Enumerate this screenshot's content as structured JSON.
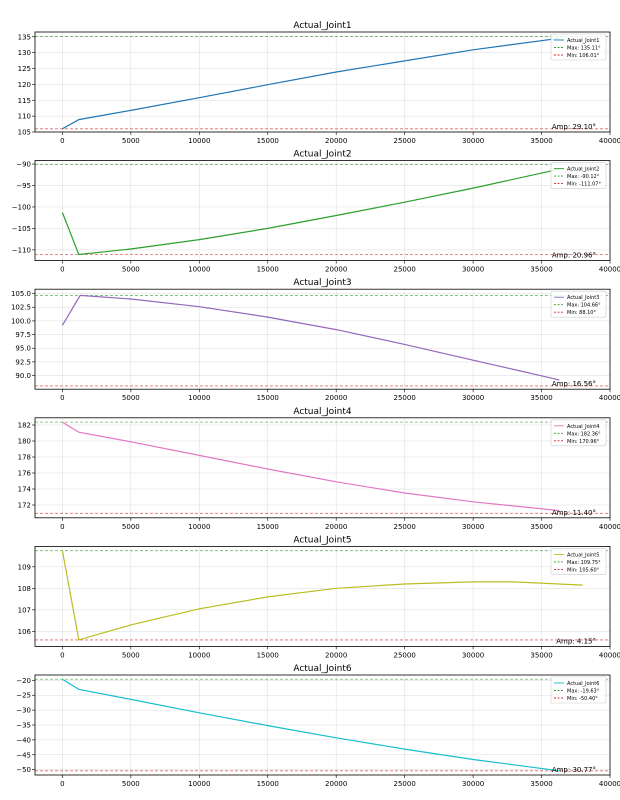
{
  "figure": {
    "background": "#ffffff"
  },
  "chart_data": [
    {
      "type": "line",
      "title": "Actual_Joint1",
      "color": "#1f77b4",
      "series_name": "Actual_Joint1",
      "x": [
        0,
        1200,
        5000,
        10000,
        15000,
        20000,
        25000,
        30000,
        36300
      ],
      "y": [
        106.01,
        108.9,
        111.8,
        115.8,
        119.9,
        123.9,
        127.4,
        130.9,
        134.5
      ],
      "xlim": [
        -2000,
        40000
      ],
      "ylim": [
        105,
        136.5
      ],
      "xticks": [
        0,
        5000,
        10000,
        15000,
        20000,
        25000,
        30000,
        35000,
        40000
      ],
      "yticks": [
        105,
        110,
        115,
        120,
        125,
        130,
        135
      ],
      "ytick_labels": [
        "105",
        "110",
        "115",
        "120",
        "125",
        "130",
        "135"
      ],
      "max_value": 135.11,
      "min_value": 106.01,
      "max_label": "Max: 135.11°",
      "min_label": "Min: 106.01°",
      "amp_label": "Amp: 29.10°"
    },
    {
      "type": "line",
      "title": "Actual_Joint2",
      "color": "#2ca02c",
      "series_name": "Actual_Joint2",
      "x": [
        0,
        1200,
        5000,
        10000,
        15000,
        20000,
        25000,
        30000,
        36300
      ],
      "y": [
        -101.3,
        -111.07,
        -109.8,
        -107.6,
        -105.0,
        -102.0,
        -98.9,
        -95.6,
        -91.2
      ],
      "xlim": [
        -2000,
        40000
      ],
      "ylim": [
        -112.5,
        -89.2
      ],
      "xticks": [
        0,
        5000,
        10000,
        15000,
        20000,
        25000,
        30000,
        35000,
        40000
      ],
      "yticks": [
        -110,
        -105,
        -100,
        -95,
        -90
      ],
      "ytick_labels": [
        "−110",
        "−105",
        "−100",
        "−95",
        "−90"
      ],
      "max_value": -90.12,
      "min_value": -111.07,
      "max_label": "Max: -90.12°",
      "min_label": "Min: -111.07°",
      "amp_label": "Amp: 20.96°"
    },
    {
      "type": "line",
      "title": "Actual_Joint3",
      "color": "#9467bd",
      "series_name": "Actual_Joint3",
      "x": [
        0,
        1300,
        5000,
        10000,
        15000,
        20000,
        25000,
        30000,
        36300
      ],
      "y": [
        99.2,
        104.66,
        104.0,
        102.6,
        100.7,
        98.4,
        95.7,
        92.8,
        89.2
      ],
      "xlim": [
        -2000,
        40000
      ],
      "ylim": [
        87.5,
        105.8
      ],
      "xticks": [
        0,
        5000,
        10000,
        15000,
        20000,
        25000,
        30000,
        35000,
        40000
      ],
      "yticks": [
        90.0,
        92.5,
        95.0,
        97.5,
        100.0,
        102.5,
        105.0
      ],
      "ytick_labels": [
        "90.0",
        "92.5",
        "95.0",
        "97.5",
        "100.0",
        "102.5",
        "105.0"
      ],
      "max_value": 104.66,
      "min_value": 88.1,
      "max_label": "Max: 104.66°",
      "min_label": "Min: 88.10°",
      "amp_label": "Amp: 16.56°"
    },
    {
      "type": "line",
      "title": "Actual_Joint4",
      "color": "#e377c2",
      "series_name": "Actual_Joint4",
      "x": [
        0,
        1200,
        5000,
        10000,
        15000,
        20000,
        25000,
        30000,
        36300
      ],
      "y": [
        182.36,
        181.1,
        179.9,
        178.2,
        176.5,
        174.9,
        173.5,
        172.4,
        171.3
      ],
      "xlim": [
        -2000,
        40000
      ],
      "ylim": [
        170.4,
        182.9
      ],
      "xticks": [
        0,
        5000,
        10000,
        15000,
        20000,
        25000,
        30000,
        35000,
        40000
      ],
      "yticks": [
        172,
        174,
        176,
        178,
        180,
        182
      ],
      "ytick_labels": [
        "172",
        "174",
        "176",
        "178",
        "180",
        "182"
      ],
      "max_value": 182.36,
      "min_value": 170.96,
      "max_label": "Max: 182.36°",
      "min_label": "Min: 170.96°",
      "amp_label": "Amp: 11.40°"
    },
    {
      "type": "line",
      "title": "Actual_Joint5",
      "color": "#bcbd22",
      "series_name": "Actual_Joint5",
      "x": [
        0,
        1200,
        2000,
        5000,
        10000,
        15000,
        20000,
        25000,
        30000,
        33000,
        38000
      ],
      "y": [
        109.75,
        105.6,
        105.75,
        106.3,
        107.05,
        107.6,
        108.0,
        108.2,
        108.3,
        108.3,
        108.15
      ],
      "xlim": [
        -2000,
        40000
      ],
      "ylim": [
        105.3,
        109.95
      ],
      "xticks": [
        0,
        5000,
        10000,
        15000,
        20000,
        25000,
        30000,
        35000,
        40000
      ],
      "yticks": [
        106,
        107,
        108,
        109
      ],
      "ytick_labels": [
        "106",
        "107",
        "108",
        "109"
      ],
      "max_value": 109.75,
      "min_value": 105.6,
      "max_label": "Max: 109.75°",
      "min_label": "Min: 105.60°",
      "amp_label": "Amp: 4.15°"
    },
    {
      "type": "line",
      "title": "Actual_Joint6",
      "color": "#17becf",
      "series_name": "Actual_Joint6",
      "x": [
        0,
        1200,
        5000,
        10000,
        15000,
        20000,
        25000,
        30000,
        36300
      ],
      "y": [
        -19.63,
        -23.0,
        -26.4,
        -30.9,
        -35.2,
        -39.3,
        -43.1,
        -46.6,
        -50.4
      ],
      "xlim": [
        -2000,
        40000
      ],
      "ylim": [
        -51.8,
        -18.2
      ],
      "xticks": [
        0,
        5000,
        10000,
        15000,
        20000,
        25000,
        30000,
        35000,
        40000
      ],
      "yticks": [
        -50,
        -45,
        -40,
        -35,
        -30,
        -25,
        -20
      ],
      "ytick_labels": [
        "−50",
        "−45",
        "−40",
        "−35",
        "−30",
        "−25",
        "−20"
      ],
      "max_value": -19.63,
      "min_value": -50.4,
      "max_label": "Max: -19.63°",
      "min_label": "Min: -50.40°",
      "amp_label": "Amp: 30.77°"
    }
  ]
}
